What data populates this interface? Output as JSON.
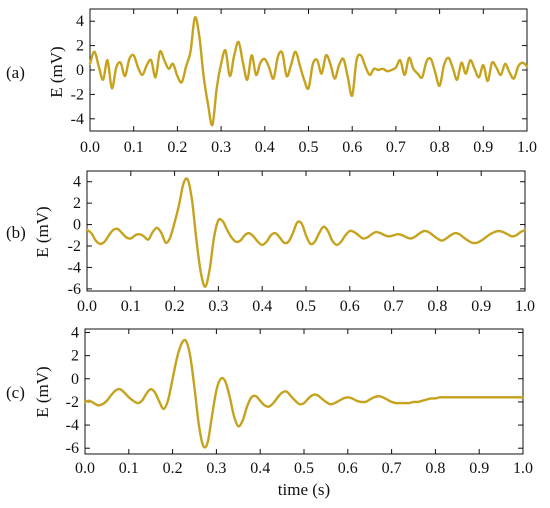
{
  "chart_data": [
    {
      "type": "line",
      "panel_label": "(a)",
      "ylabel": "E (mV)",
      "xlabel": "",
      "xlim": [
        0,
        1.0
      ],
      "ylim": [
        -5,
        5
      ],
      "x_ticks": [
        "0.0",
        "0.1",
        "0.2",
        "0.3",
        "0.4",
        "0.5",
        "0.6",
        "0.7",
        "0.8",
        "0.9",
        "1.0"
      ],
      "y_ticks": [
        "4",
        "2",
        "0",
        "-2",
        "-4"
      ],
      "color": "#c6a31e",
      "x": [
        0.0,
        0.01,
        0.02,
        0.03,
        0.04,
        0.05,
        0.06,
        0.07,
        0.08,
        0.09,
        0.1,
        0.11,
        0.12,
        0.13,
        0.14,
        0.15,
        0.16,
        0.17,
        0.18,
        0.19,
        0.2,
        0.21,
        0.22,
        0.23,
        0.24,
        0.25,
        0.26,
        0.27,
        0.28,
        0.29,
        0.3,
        0.31,
        0.32,
        0.33,
        0.34,
        0.35,
        0.36,
        0.37,
        0.38,
        0.39,
        0.4,
        0.41,
        0.42,
        0.43,
        0.44,
        0.45,
        0.46,
        0.47,
        0.48,
        0.49,
        0.5,
        0.51,
        0.52,
        0.53,
        0.54,
        0.55,
        0.56,
        0.57,
        0.58,
        0.59,
        0.6,
        0.61,
        0.62,
        0.63,
        0.64,
        0.65,
        0.66,
        0.67,
        0.68,
        0.69,
        0.7,
        0.71,
        0.72,
        0.73,
        0.74,
        0.75,
        0.76,
        0.77,
        0.78,
        0.79,
        0.8,
        0.81,
        0.82,
        0.83,
        0.84,
        0.85,
        0.86,
        0.87,
        0.88,
        0.89,
        0.9,
        0.91,
        0.92,
        0.93,
        0.94,
        0.95,
        0.96,
        0.97,
        0.98,
        0.99,
        1.0
      ],
      "y": [
        0.5,
        1.5,
        0.3,
        -0.8,
        0.8,
        -1.5,
        0.2,
        0.6,
        -0.5,
        0.9,
        1.2,
        0.2,
        -0.4,
        0.4,
        0.8,
        -0.6,
        1.5,
        0.8,
        0.1,
        0.5,
        -0.5,
        -1.0,
        0.3,
        1.5,
        4.3,
        2.8,
        -0.5,
        -2.8,
        -4.5,
        -1.5,
        0.5,
        1.6,
        -0.5,
        1.2,
        2.3,
        0.6,
        -0.8,
        1.2,
        -0.4,
        0.6,
        0.9,
        0.2,
        -0.7,
        1.1,
        1.4,
        -0.5,
        0.4,
        1.5,
        0.4,
        -0.8,
        -1.5,
        0.5,
        0.8,
        -0.3,
        1.2,
        0.5,
        -0.7,
        0.4,
        0.9,
        -0.6,
        -2.1,
        0.8,
        1.2,
        0.3,
        -0.4,
        0.1,
        0.0,
        0.1,
        -0.1,
        0.0,
        0.2,
        0.8,
        -0.4,
        1.0,
        0.1,
        -0.3,
        -0.6,
        0.7,
        0.9,
        -0.2,
        -1.3,
        0.4,
        1.0,
        0.2,
        -0.8,
        0.6,
        -0.3,
        0.8,
        0.1,
        -0.6,
        0.4,
        -0.9,
        0.6,
        0.2,
        -0.4,
        0.5,
        -0.2,
        -0.7,
        0.3,
        0.6,
        0.3
      ]
    },
    {
      "type": "line",
      "panel_label": "(b)",
      "ylabel": "E (mV)",
      "xlabel": "",
      "xlim": [
        0,
        1.0
      ],
      "ylim": [
        -6.2,
        5.0
      ],
      "x_ticks": [
        "0.0",
        "0.1",
        "0.2",
        "0.3",
        "0.4",
        "0.5",
        "0.6",
        "0.7",
        "0.8",
        "0.9",
        "1.0"
      ],
      "y_ticks": [
        "4",
        "2",
        "0",
        "-2",
        "-4",
        "-6"
      ],
      "color": "#c6a31e",
      "x": [
        0.0,
        0.01,
        0.02,
        0.03,
        0.04,
        0.05,
        0.06,
        0.07,
        0.08,
        0.09,
        0.1,
        0.11,
        0.12,
        0.13,
        0.14,
        0.15,
        0.16,
        0.17,
        0.18,
        0.19,
        0.2,
        0.21,
        0.22,
        0.23,
        0.24,
        0.25,
        0.26,
        0.27,
        0.28,
        0.29,
        0.3,
        0.31,
        0.32,
        0.33,
        0.34,
        0.35,
        0.36,
        0.37,
        0.38,
        0.39,
        0.4,
        0.41,
        0.42,
        0.43,
        0.44,
        0.45,
        0.46,
        0.47,
        0.48,
        0.49,
        0.5,
        0.51,
        0.52,
        0.53,
        0.54,
        0.55,
        0.56,
        0.57,
        0.58,
        0.59,
        0.6,
        0.61,
        0.62,
        0.63,
        0.64,
        0.65,
        0.66,
        0.67,
        0.68,
        0.69,
        0.7,
        0.71,
        0.72,
        0.73,
        0.74,
        0.75,
        0.76,
        0.77,
        0.78,
        0.79,
        0.8,
        0.81,
        0.82,
        0.83,
        0.84,
        0.85,
        0.86,
        0.87,
        0.88,
        0.89,
        0.9,
        0.91,
        0.92,
        0.93,
        0.94,
        0.95,
        0.96,
        0.97,
        0.98,
        0.99,
        1.0
      ],
      "y": [
        -0.5,
        -0.8,
        -1.5,
        -1.8,
        -1.6,
        -1.0,
        -0.5,
        -0.4,
        -0.8,
        -1.2,
        -1.3,
        -1.0,
        -0.9,
        -1.1,
        -1.4,
        -0.7,
        -0.3,
        -0.8,
        -1.7,
        -1.2,
        0.2,
        1.8,
        3.8,
        4.2,
        2.2,
        -1.5,
        -4.5,
        -5.8,
        -4.2,
        -1.2,
        0.4,
        0.3,
        -0.5,
        -1.2,
        -1.6,
        -1.5,
        -1.0,
        -0.8,
        -1.1,
        -1.6,
        -1.9,
        -1.6,
        -1.0,
        -0.8,
        -1.2,
        -1.7,
        -1.6,
        -0.8,
        0.2,
        0.1,
        -1.0,
        -1.8,
        -1.6,
        -0.8,
        -0.2,
        -0.6,
        -1.5,
        -1.9,
        -1.6,
        -1.0,
        -0.6,
        -0.7,
        -1.0,
        -1.3,
        -1.2,
        -0.9,
        -0.7,
        -0.8,
        -1.0,
        -1.1,
        -1.0,
        -0.9,
        -1.0,
        -1.2,
        -1.3,
        -1.1,
        -0.8,
        -0.6,
        -0.7,
        -1.0,
        -1.3,
        -1.5,
        -1.3,
        -1.0,
        -0.8,
        -0.9,
        -1.2,
        -1.5,
        -1.7,
        -1.7,
        -1.5,
        -1.2,
        -0.9,
        -0.7,
        -0.6,
        -0.7,
        -0.9,
        -1.1,
        -1.0,
        -0.7,
        -0.5
      ]
    },
    {
      "type": "line",
      "panel_label": "(c)",
      "ylabel": "E (mV)",
      "xlabel": "time (s)",
      "xlim": [
        0,
        1.0
      ],
      "ylim": [
        -6.5,
        4.3
      ],
      "x_ticks": [
        "0.0",
        "0.1",
        "0.2",
        "0.3",
        "0.4",
        "0.5",
        "0.6",
        "0.7",
        "0.8",
        "0.9",
        "1.0"
      ],
      "y_ticks": [
        "4",
        "2",
        "0",
        "-2",
        "-4",
        "-6"
      ],
      "color": "#c6a31e",
      "x": [
        0.0,
        0.01,
        0.02,
        0.03,
        0.04,
        0.05,
        0.06,
        0.07,
        0.08,
        0.09,
        0.1,
        0.11,
        0.12,
        0.13,
        0.14,
        0.15,
        0.16,
        0.17,
        0.18,
        0.19,
        0.2,
        0.21,
        0.22,
        0.23,
        0.24,
        0.25,
        0.26,
        0.27,
        0.28,
        0.29,
        0.3,
        0.31,
        0.32,
        0.33,
        0.34,
        0.35,
        0.36,
        0.37,
        0.38,
        0.39,
        0.4,
        0.41,
        0.42,
        0.43,
        0.44,
        0.45,
        0.46,
        0.47,
        0.48,
        0.49,
        0.5,
        0.51,
        0.52,
        0.53,
        0.54,
        0.55,
        0.56,
        0.57,
        0.58,
        0.59,
        0.6,
        0.61,
        0.62,
        0.63,
        0.64,
        0.65,
        0.66,
        0.67,
        0.68,
        0.69,
        0.7,
        0.71,
        0.72,
        0.73,
        0.74,
        0.75,
        0.76,
        0.77,
        0.78,
        0.79,
        0.8,
        0.81,
        0.82,
        0.83,
        0.84,
        0.85,
        0.86,
        0.87,
        0.88,
        0.89,
        0.9,
        0.91,
        0.92,
        0.93,
        0.94,
        0.95,
        0.96,
        0.97,
        0.98,
        0.99,
        1.0
      ],
      "y": [
        -2.0,
        -1.9,
        -2.1,
        -2.3,
        -2.2,
        -1.9,
        -1.4,
        -1.0,
        -0.9,
        -1.2,
        -1.6,
        -1.9,
        -2.1,
        -1.9,
        -1.3,
        -0.9,
        -1.2,
        -2.0,
        -2.6,
        -1.8,
        0.0,
        1.8,
        3.0,
        3.3,
        2.0,
        -0.8,
        -4.0,
        -5.8,
        -5.5,
        -3.2,
        -1.0,
        0.0,
        -0.2,
        -1.5,
        -3.2,
        -4.1,
        -3.6,
        -2.4,
        -1.6,
        -1.5,
        -1.9,
        -2.3,
        -2.4,
        -2.1,
        -1.6,
        -1.2,
        -1.1,
        -1.5,
        -1.9,
        -2.2,
        -2.1,
        -1.7,
        -1.4,
        -1.4,
        -1.7,
        -2.0,
        -2.2,
        -2.1,
        -1.9,
        -1.7,
        -1.6,
        -1.7,
        -1.9,
        -2.0,
        -2.0,
        -1.8,
        -1.6,
        -1.5,
        -1.6,
        -1.8,
        -2.0,
        -2.1,
        -2.1,
        -2.1,
        -2.1,
        -2.0,
        -2.0,
        -1.9,
        -1.8,
        -1.7,
        -1.7,
        -1.6,
        -1.6,
        -1.6,
        -1.6,
        -1.6,
        -1.6,
        -1.6,
        -1.6,
        -1.6,
        -1.6,
        -1.6,
        -1.6,
        -1.6,
        -1.6,
        -1.6,
        -1.6,
        -1.6,
        -1.6,
        -1.6,
        -1.6
      ]
    }
  ]
}
